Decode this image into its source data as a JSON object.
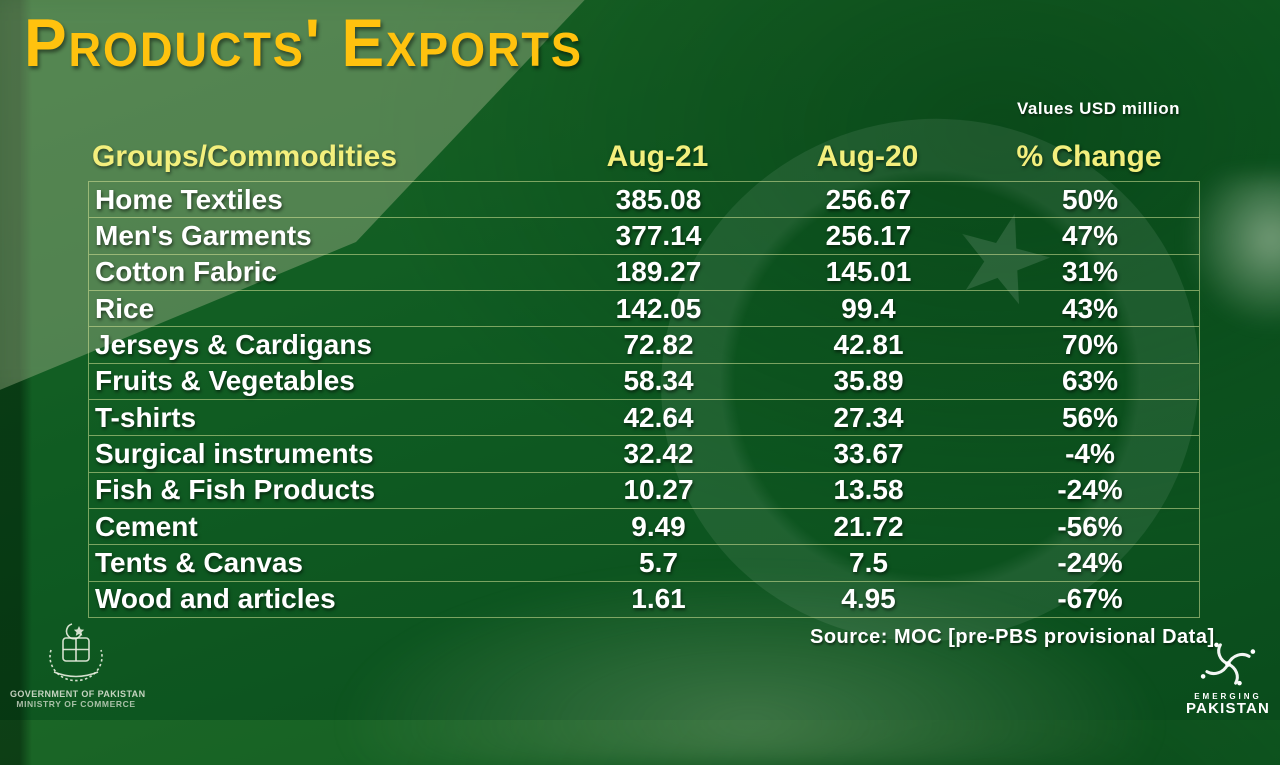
{
  "page": {
    "title": "Products' Exports",
    "note": "Values USD million",
    "source": "Source: MOC [pre-PBS provisional Data]"
  },
  "chart_data": {
    "type": "table",
    "title": "Products' Exports",
    "unit_note": "Values USD million",
    "columns": [
      "Groups/Commodities",
      "Aug-21",
      "Aug-20",
      "% Change"
    ],
    "rows": [
      [
        "Home Textiles",
        "385.08",
        "256.67",
        "50%"
      ],
      [
        "Men's Garments",
        "377.14",
        "256.17",
        "47%"
      ],
      [
        "Cotton Fabric",
        "189.27",
        "145.01",
        "31%"
      ],
      [
        "Rice",
        "142.05",
        "99.4",
        "43%"
      ],
      [
        "Jerseys & Cardigans",
        "72.82",
        "42.81",
        "70%"
      ],
      [
        "Fruits & Vegetables",
        "58.34",
        "35.89",
        "63%"
      ],
      [
        "T-shirts",
        "42.64",
        "27.34",
        "56%"
      ],
      [
        "Surgical instruments",
        "32.42",
        "33.67",
        "-4%"
      ],
      [
        "Fish & Fish Products",
        "10.27",
        "13.58",
        "-24%"
      ],
      [
        "Cement",
        "9.49",
        "21.72",
        "-56%"
      ],
      [
        "Tents & Canvas",
        "5.7",
        "7.5",
        "-24%"
      ],
      [
        "Wood and articles",
        "1.61",
        "4.95",
        "-67%"
      ]
    ],
    "source": "Source: MOC [pre-PBS provisional Data]"
  },
  "footer": {
    "gov_line1": "GOVERNMENT OF PAKISTAN",
    "gov_line2": "MINISTRY OF COMMERCE",
    "emerging_line1": "EMERGING",
    "emerging_line2": "PAKISTAN"
  },
  "colors": {
    "accent_gold": "#ffc20e",
    "header_yellow": "#f3ef7d",
    "flag_green": "#0f5b22",
    "line_color": "rgba(213,228,152,0.55)",
    "text_white": "#ffffff"
  }
}
